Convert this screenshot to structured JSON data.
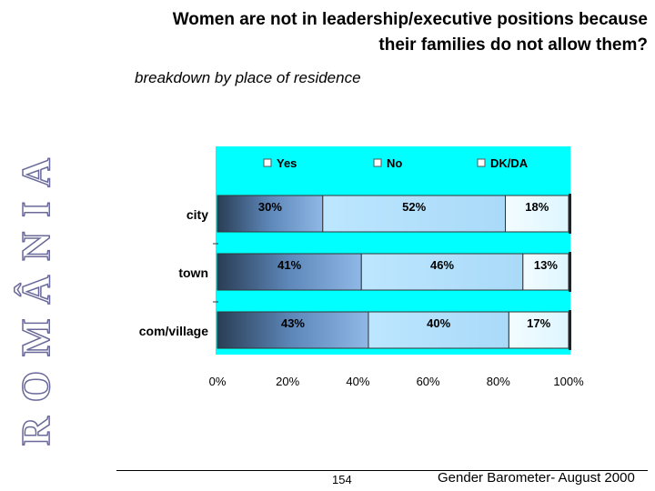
{
  "side_word": "ROMÂNIA",
  "title_lines": [
    "Women are not in leadership/executive positions because",
    "their families do not allow them?"
  ],
  "subtitle": "breakdown by place of residence",
  "footer": {
    "page_number": "154",
    "source": "Gender Barometer- August 2000"
  },
  "colors": {
    "background_band": "#00ffff",
    "yes": "#5c84b4",
    "no": "#bfe7ff",
    "dkda": "#e8f9ff"
  },
  "chart_data": {
    "type": "bar",
    "orientation": "horizontal",
    "stacked": true,
    "categories": [
      "city",
      "town",
      "com/village"
    ],
    "series": [
      {
        "name": "Yes",
        "values": [
          30,
          41,
          43
        ]
      },
      {
        "name": "No",
        "values": [
          52,
          46,
          40
        ]
      },
      {
        "name": "DK/DA",
        "values": [
          18,
          13,
          17
        ]
      }
    ],
    "value_labels": [
      [
        "30%",
        "52%",
        "18%"
      ],
      [
        "41%",
        "46%",
        "13%"
      ],
      [
        "43%",
        "40%",
        "17%"
      ]
    ],
    "x_ticks": [
      "0%",
      "20%",
      "40%",
      "60%",
      "80%",
      "100%"
    ],
    "xlim": [
      0,
      100
    ],
    "legend_position": "top",
    "grid": false
  }
}
